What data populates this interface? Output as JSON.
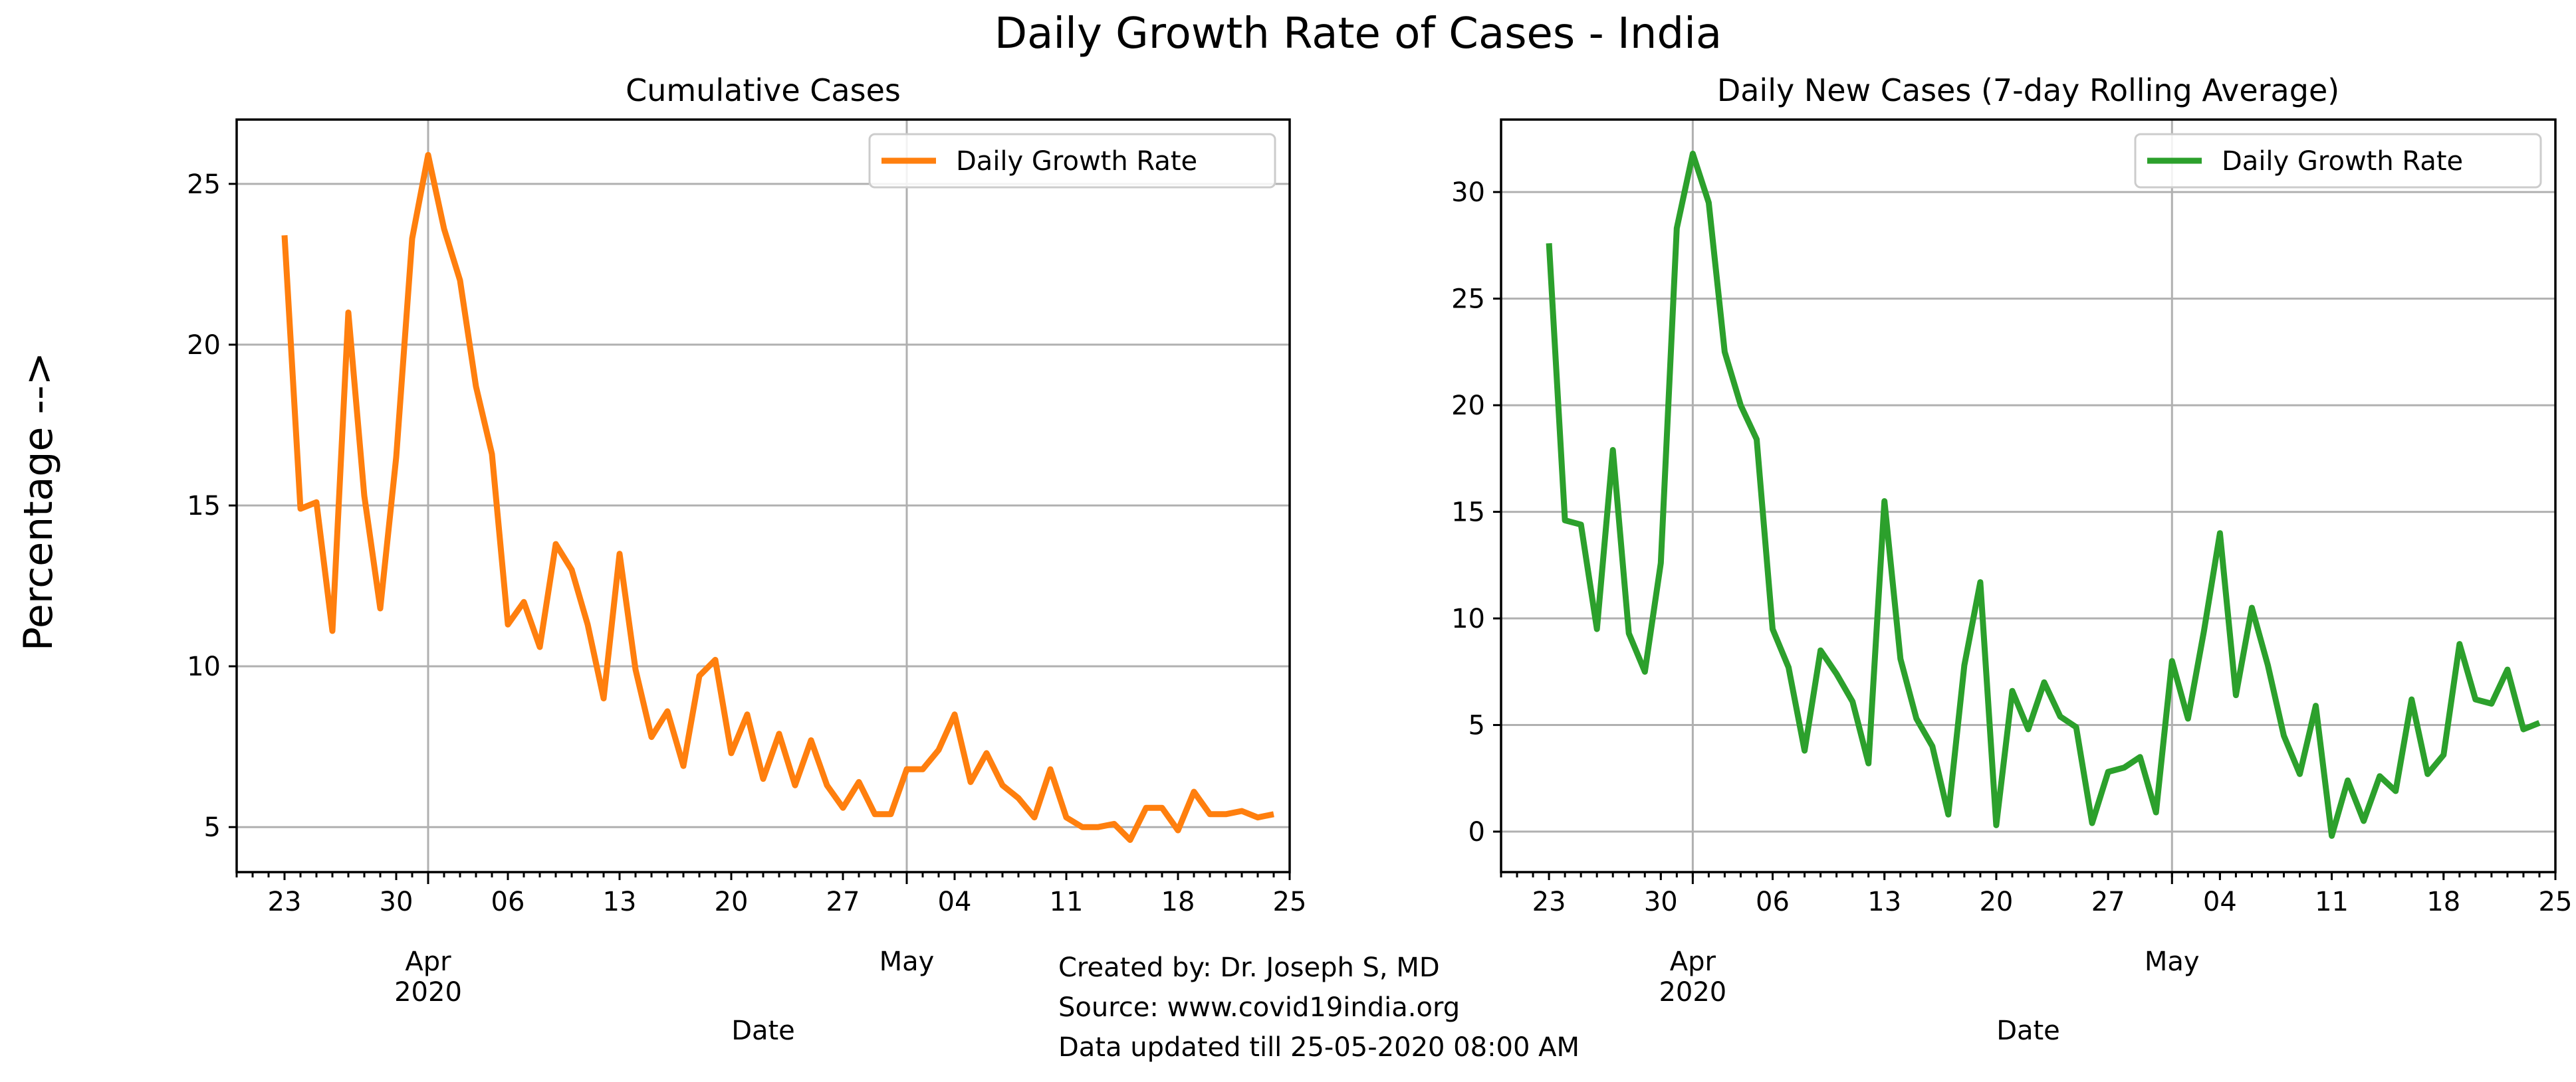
{
  "figure": {
    "title": "Daily Growth Rate of Cases - India",
    "ylabel": "Percentage -->",
    "credits": [
      "Created by: Dr. Joseph S, MD",
      "Source: www.covid19india.org",
      "Data updated till 25-05-2020 08:00 AM"
    ]
  },
  "chart_data": [
    {
      "type": "line",
      "title": "Cumulative Cases",
      "xlabel": "Date",
      "ylabel": "",
      "legend": "top-right",
      "grid": true,
      "color": "#ff7f0e",
      "x_start": "2020-03-23",
      "x_range": [
        "2020-03-20",
        "2020-05-25"
      ],
      "ylim": [
        3.6,
        27.0
      ],
      "yticks": [
        5,
        10,
        15,
        20,
        25
      ],
      "xticks_minor": [
        "23",
        "30",
        "06",
        "13",
        "20",
        "27",
        "04",
        "11",
        "18",
        "25"
      ],
      "xticks_major": [
        {
          "date": "2020-04-01",
          "label": "Apr\n2020"
        },
        {
          "date": "2020-05-01",
          "label": "May"
        }
      ],
      "series": [
        {
          "name": "Daily Growth Rate",
          "values": [
            23.4,
            14.9,
            15.1,
            11.1,
            21.0,
            15.3,
            11.8,
            16.5,
            23.3,
            25.9,
            23.6,
            22.0,
            18.7,
            16.6,
            11.3,
            12.0,
            10.6,
            13.8,
            13.0,
            11.3,
            9.0,
            13.5,
            9.9,
            7.8,
            8.6,
            6.9,
            9.7,
            10.2,
            7.3,
            8.5,
            6.5,
            7.9,
            6.3,
            7.7,
            6.3,
            5.6,
            6.4,
            5.4,
            5.4,
            6.8,
            6.8,
            7.4,
            8.5,
            6.4,
            7.3,
            6.3,
            5.9,
            5.3,
            6.8,
            5.3,
            5.0,
            5.0,
            5.1,
            4.6,
            5.6,
            5.6,
            4.9,
            6.1,
            5.4,
            5.4,
            5.5,
            5.3,
            5.4
          ]
        }
      ]
    },
    {
      "type": "line",
      "title": "Daily New Cases (7-day Rolling Average)",
      "xlabel": "Date",
      "ylabel": "",
      "legend": "top-right",
      "grid": true,
      "color": "#2ca02c",
      "x_start": "2020-03-23",
      "x_range": [
        "2020-03-20",
        "2020-05-25"
      ],
      "ylim": [
        -1.9,
        33.4
      ],
      "yticks": [
        0,
        5,
        10,
        15,
        20,
        25,
        30
      ],
      "xticks_minor": [
        "23",
        "30",
        "06",
        "13",
        "20",
        "27",
        "04",
        "11",
        "18",
        "25"
      ],
      "xticks_major": [
        {
          "date": "2020-04-01",
          "label": "Apr\n2020"
        },
        {
          "date": "2020-05-01",
          "label": "May"
        }
      ],
      "series": [
        {
          "name": "Daily Growth Rate",
          "values": [
            27.6,
            14.6,
            14.4,
            9.5,
            17.9,
            9.3,
            7.5,
            12.6,
            28.3,
            31.8,
            29.5,
            22.5,
            20.0,
            18.4,
            9.5,
            7.7,
            3.8,
            8.5,
            7.4,
            6.1,
            3.2,
            15.5,
            8.1,
            5.3,
            4.0,
            0.8,
            7.8,
            11.7,
            0.3,
            6.6,
            4.8,
            7.0,
            5.4,
            4.9,
            0.4,
            2.8,
            3.0,
            3.5,
            0.9,
            8.0,
            5.3,
            9.4,
            14.0,
            6.4,
            10.5,
            7.8,
            4.5,
            2.7,
            5.9,
            -0.2,
            2.4,
            0.5,
            2.6,
            1.9,
            6.2,
            2.7,
            3.6,
            8.8,
            6.2,
            6.0,
            7.6,
            4.8,
            5.1
          ]
        }
      ]
    }
  ]
}
